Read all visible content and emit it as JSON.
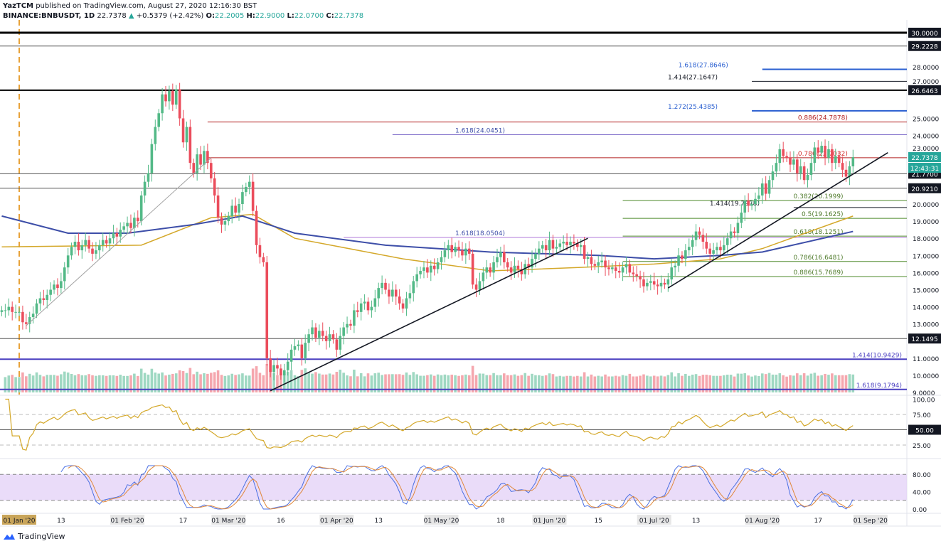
{
  "header": {
    "publisher": "YazTCM",
    "published": "published on TradingView.com, August 27, 2020 12:16:30 BST",
    "symbol": "BINANCE:BNBUSDT, 1D",
    "last": "22.7378",
    "change": "+0.5379 (+2.42%)",
    "o_label": "O:",
    "o": "22.2005",
    "h_label": "H:",
    "h": "22.9000",
    "l_label": "L:",
    "l": "22.0700",
    "c_label": "C:",
    "c": "22.7378"
  },
  "logo": {
    "text": "TradingView",
    "icon": "tradingview-cloud-icon"
  },
  "colors": {
    "up": "#53b987",
    "down": "#eb4d5c",
    "ma_yellow": "#d4a82a",
    "ma_blue": "#3d4ea8",
    "rsi": "#d4a82a",
    "stoch_k": "#4a6fe3",
    "stoch_d": "#e0883a",
    "stoch_band": "#e1cdf7"
  },
  "chart_data": {
    "type": "candlestick",
    "date_range": [
      "2019-12-27",
      "2020-08-27"
    ],
    "interval": "1D",
    "ylim": [
      9,
      30
    ],
    "closes": [
      13.8,
      13.8,
      14.0,
      13.7,
      13.7,
      13.7,
      13.1,
      13.0,
      13.4,
      13.6,
      14.2,
      14.5,
      14.4,
      14.7,
      15.0,
      15.3,
      15.1,
      15.5,
      16.3,
      17.0,
      17.5,
      17.8,
      17.3,
      17.6,
      17.9,
      17.4,
      17.1,
      17.3,
      17.6,
      17.9,
      17.7,
      18.0,
      18.3,
      18.1,
      18.5,
      18.7,
      18.9,
      18.6,
      19.2,
      19.0,
      20.5,
      21.3,
      21.8,
      23.5,
      24.5,
      25.3,
      26.4,
      26.0,
      26.6,
      25.8,
      26.7,
      25.0,
      23.6,
      24.5,
      22.4,
      21.8,
      22.9,
      22.3,
      23.1,
      22.4,
      21.5,
      20.5,
      19.2,
      18.8,
      19.0,
      19.3,
      19.9,
      19.5,
      20.0,
      20.7,
      21.0,
      21.3,
      19.6,
      17.6,
      16.9,
      16.6,
      11.0,
      10.2,
      10.6,
      10.4,
      10.0,
      10.3,
      10.8,
      11.5,
      11.7,
      11.8,
      11.0,
      11.9,
      12.4,
      12.8,
      12.2,
      12.6,
      12.3,
      12.0,
      12.4,
      12.1,
      11.5,
      12.3,
      12.8,
      13.0,
      12.9,
      13.8,
      13.7,
      14.2,
      14.3,
      13.8,
      14.0,
      14.5,
      15.1,
      15.4,
      15.0,
      14.6,
      15.0,
      14.6,
      14.2,
      13.9,
      14.5,
      14.8,
      15.5,
      15.9,
      16.1,
      16.3,
      16.0,
      16.4,
      16.2,
      16.6,
      16.9,
      17.3,
      17.6,
      17.2,
      17.5,
      17.3,
      17.0,
      17.4,
      17.1,
      15.3,
      15.0,
      15.5,
      16.0,
      16.3,
      16.0,
      16.6,
      16.9,
      17.2,
      16.6,
      16.3,
      16.0,
      16.4,
      16.2,
      15.9,
      16.5,
      16.3,
      16.8,
      17.1,
      17.4,
      17.6,
      17.3,
      17.9,
      17.4,
      17.5,
      17.7,
      17.8,
      17.6,
      17.8,
      17.7,
      17.5,
      17.6,
      16.8,
      16.9,
      16.5,
      16.4,
      16.6,
      16.7,
      16.3,
      16.2,
      16.3,
      16.1,
      16.0,
      16.3,
      16.5,
      16.0,
      15.9,
      15.8,
      15.6,
      15.2,
      15.4,
      15.5,
      15.3,
      15.2,
      15.4,
      15.3,
      15.6,
      16.3,
      16.4,
      17.0,
      16.8,
      17.3,
      17.5,
      17.9,
      18.4,
      18.2,
      17.8,
      17.4,
      17.1,
      17.3,
      17.5,
      17.3,
      17.6,
      18.0,
      18.4,
      18.3,
      18.9,
      19.5,
      20.2,
      19.9,
      20.0,
      20.3,
      20.5,
      21.2,
      20.6,
      21.4,
      21.9,
      22.4,
      23.2,
      22.8,
      22.7,
      22.3,
      22.6,
      21.8,
      22.2,
      21.4,
      21.7,
      22.4,
      23.3,
      23.0,
      23.4,
      22.7,
      23.2,
      22.4,
      22.8,
      22.4,
      22.0,
      21.6,
      22.2,
      22.7378
    ],
    "ma_yellow": [
      [
        "2019-12-27",
        17.5
      ],
      [
        "2020-02-05",
        17.6
      ],
      [
        "2020-02-25",
        19.2
      ],
      [
        "2020-03-08",
        19.4
      ],
      [
        "2020-03-20",
        18.0
      ],
      [
        "2020-04-20",
        16.8
      ],
      [
        "2020-05-15",
        16.1
      ],
      [
        "2020-06-10",
        16.3
      ],
      [
        "2020-07-01",
        16.5
      ],
      [
        "2020-07-20",
        16.8
      ],
      [
        "2020-08-01",
        17.4
      ],
      [
        "2020-08-27",
        19.3
      ]
    ],
    "ma_blue": [
      [
        "2019-12-27",
        19.3
      ],
      [
        "2020-01-15",
        18.3
      ],
      [
        "2020-02-01",
        18.3
      ],
      [
        "2020-02-20",
        18.8
      ],
      [
        "2020-03-05",
        19.3
      ],
      [
        "2020-03-20",
        18.3
      ],
      [
        "2020-04-15",
        17.6
      ],
      [
        "2020-05-15",
        17.2
      ],
      [
        "2020-06-15",
        17.0
      ],
      [
        "2020-07-01",
        16.8
      ],
      [
        "2020-07-20",
        17.0
      ],
      [
        "2020-08-01",
        17.2
      ],
      [
        "2020-08-27",
        18.4
      ]
    ],
    "trendlines": [
      {
        "from": [
          "2020-01-03",
          12.9
        ],
        "to": [
          "2020-02-25",
          22.7
        ],
        "color": "#a0a0a0"
      },
      {
        "from": [
          "2020-03-13",
          9.1
        ],
        "to": [
          "2020-06-12",
          18.0
        ],
        "color": "#131722"
      },
      {
        "from": [
          "2020-07-05",
          15.1
        ],
        "to": [
          "2020-09-06",
          23.0
        ],
        "color": "#131722"
      }
    ],
    "levels": [
      {
        "price": 30.0,
        "color": "#000000",
        "width": 3,
        "from": null,
        "badge": "30.0000"
      },
      {
        "price": 29.2228,
        "color": "#555555",
        "width": 1,
        "from": null,
        "badge": "29.2228"
      },
      {
        "price": 27.8646,
        "color": "#2a5fd0",
        "width": 2,
        "from": "2020-08-01",
        "label": "1.618(27.8646)",
        "label_color": "#2a5fd0"
      },
      {
        "price": 27.1647,
        "color": "#131722",
        "width": 1,
        "from": "2020-07-29",
        "label": "1.414(27.1647)",
        "label_color": "#131722"
      },
      {
        "price": 26.6463,
        "color": "#000000",
        "width": 2,
        "from": null,
        "badge": "26.6463"
      },
      {
        "price": 25.4385,
        "color": "#2a5fd0",
        "width": 2,
        "from": "2020-07-29",
        "label": "1.272(25.4385)",
        "label_color": "#2a5fd0"
      },
      {
        "price": 24.7878,
        "color": "#b22222",
        "width": 1,
        "from": "2020-02-24",
        "label": "0.886(24.7878)",
        "label_color": "#b22222"
      },
      {
        "price": 24.0451,
        "color": "#7b68c8",
        "width": 1,
        "from": "2020-04-17",
        "label": "1.618(24.0451)",
        "label_color": "#3d4ea8"
      },
      {
        "price": 22.7032,
        "color": "#b22222",
        "width": 1,
        "from": "2020-02-24",
        "label": "0.786(22.7032)",
        "label_color": "#d32f2f"
      },
      {
        "price": 21.77,
        "color": "#555555",
        "width": 1,
        "from": null,
        "badge": "21.7700"
      },
      {
        "price": 20.921,
        "color": "#555555",
        "width": 1,
        "from": null,
        "badge": "20.9210"
      },
      {
        "price": 20.1999,
        "color": "#4e8a2a",
        "width": 1,
        "from": "2020-06-22",
        "label": "0.382(20.1999)",
        "label_color": "#4e7a2a"
      },
      {
        "price": 19.7978,
        "color": "#131722",
        "width": 1,
        "from": "2020-08-10",
        "label": "1.414(19.7978)",
        "label_color": "#131722"
      },
      {
        "price": 19.1625,
        "color": "#4e8a2a",
        "width": 1,
        "from": "2020-06-22",
        "label": "0.5(19.1625)",
        "label_color": "#4e7a2a"
      },
      {
        "price": 18.1251,
        "color": "#4e8a2a",
        "width": 1,
        "from": "2020-06-22",
        "label": "0.618(18.1251)",
        "label_color": "#4e7a2a"
      },
      {
        "price": 18.0504,
        "color": "#b07ad8",
        "width": 1,
        "from": "2020-04-03",
        "label": "1.618(18.0504)",
        "label_color": "#3d4ea8"
      },
      {
        "price": 16.6481,
        "color": "#4e8a2a",
        "width": 1,
        "from": "2020-06-22",
        "label": "0.786(16.6481)",
        "label_color": "#4e7a2a"
      },
      {
        "price": 15.7689,
        "color": "#4e8a2a",
        "width": 1,
        "from": "2020-06-22",
        "label": "0.886(15.7689)",
        "label_color": "#4e7a2a"
      },
      {
        "price": 12.1495,
        "color": "#555555",
        "width": 1,
        "from": null,
        "badge": "12.1495"
      },
      {
        "price": 10.9429,
        "color": "#4a3fc0",
        "width": 2,
        "from": null,
        "label": "1.414(10.9429)",
        "label_color": "#4a3fc0"
      },
      {
        "price": 9.1794,
        "color": "#4a3fc0",
        "width": 2,
        "from": null,
        "label": "1.618(9.1794)",
        "label_color": "#4a3fc0"
      }
    ],
    "price_ticks": [
      "28.0000",
      "27.0000",
      "25.0000",
      "24.0000",
      "23.0000",
      "20.0000",
      "19.0000",
      "18.0000",
      "17.0000",
      "16.0000",
      "15.0000",
      "14.0000",
      "13.0000",
      "11.0000",
      "10.0000",
      "9.0000"
    ],
    "last_price_badge": "22.7378",
    "countdown_badge": "12:43:31",
    "vertical_marker": "2020-01-01",
    "time_ticks": [
      [
        "2020-01-01",
        "01 Jan '20"
      ],
      [
        "2020-01-13",
        "13"
      ],
      [
        "2020-02-01",
        "01 Feb '20"
      ],
      [
        "2020-02-17",
        "17"
      ],
      [
        "2020-03-01",
        "01 Mar '20"
      ],
      [
        "2020-03-16",
        "16"
      ],
      [
        "2020-04-01",
        "01 Apr '20"
      ],
      [
        "2020-04-13",
        "13"
      ],
      [
        "2020-05-01",
        "01 May '20"
      ],
      [
        "2020-05-18",
        "18"
      ],
      [
        "2020-06-01",
        "01 Jun '20"
      ],
      [
        "2020-06-15",
        "15"
      ],
      [
        "2020-07-01",
        "01 Jul '20"
      ],
      [
        "2020-07-13",
        "13"
      ],
      [
        "2020-08-01",
        "01 Aug '20"
      ],
      [
        "2020-08-17",
        "17"
      ],
      [
        "2020-09-01",
        "01 Sep '20"
      ]
    ],
    "rsi": {
      "ylim": [
        0,
        100
      ],
      "levels": [
        75,
        50,
        25
      ],
      "ticks": [
        "100.00",
        "75.00",
        "25.00"
      ],
      "badge": "50.00"
    },
    "stoch_rsi": {
      "ylim": [
        0,
        100
      ],
      "band": [
        20,
        80
      ],
      "ticks": [
        "80.00",
        "40.00",
        "0.00"
      ]
    }
  }
}
